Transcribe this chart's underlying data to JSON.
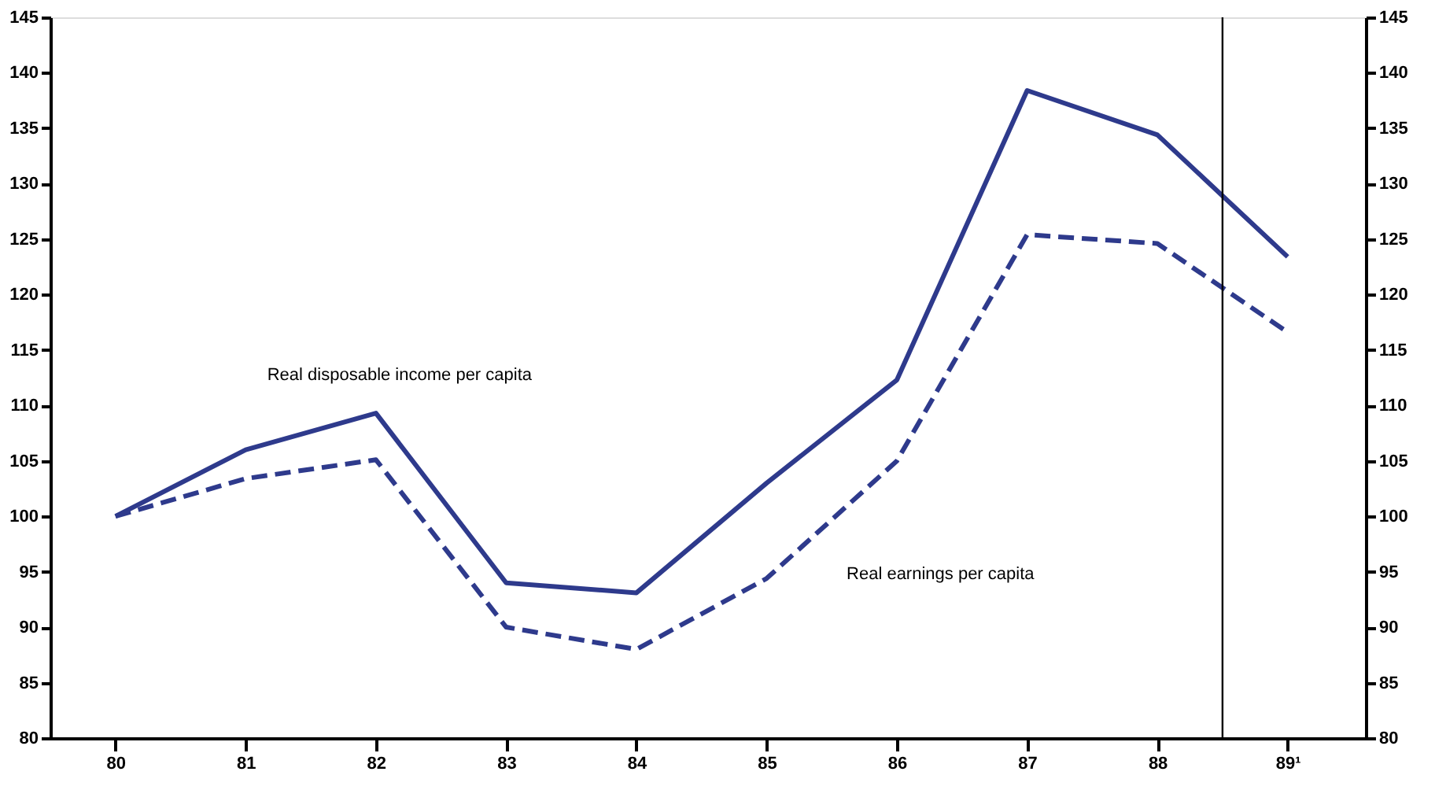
{
  "chart_data": {
    "type": "line",
    "x": [
      80,
      81,
      82,
      83,
      84,
      85,
      86,
      87,
      88,
      89
    ],
    "series": [
      {
        "name": "Real disposable income per capita",
        "color": "#2e3a8c",
        "line_style": "solid",
        "values": [
          100,
          106,
          109.3,
          94,
          93.1,
          103,
          112.3,
          138.4,
          134.4,
          123.4
        ]
      },
      {
        "name": "Real earnings per capita",
        "color": "#2e3a8c",
        "line_style": "dashed",
        "values": [
          100,
          103.4,
          105.1,
          90,
          88,
          94.4,
          105,
          125.4,
          124.6,
          116.6
        ]
      }
    ],
    "xlim": [
      79.5,
      89.6
    ],
    "xticks": [
      80,
      81,
      82,
      83,
      84,
      85,
      86,
      87,
      88,
      {
        "value": 89,
        "label": "89¹"
      }
    ],
    "ylim": [
      80,
      145
    ],
    "yticks": [
      80,
      85,
      90,
      95,
      100,
      105,
      110,
      115,
      120,
      125,
      130,
      135,
      140,
      145
    ],
    "y2lim": [
      80,
      145
    ],
    "y2ticks": [
      80,
      85,
      90,
      95,
      100,
      105,
      110,
      115,
      120,
      125,
      130,
      135,
      140,
      145
    ],
    "ref_lines": [
      {
        "axis": "x",
        "value": 88.5,
        "color": "#000000"
      }
    ],
    "grid": false,
    "legend": false,
    "marker": "none"
  }
}
